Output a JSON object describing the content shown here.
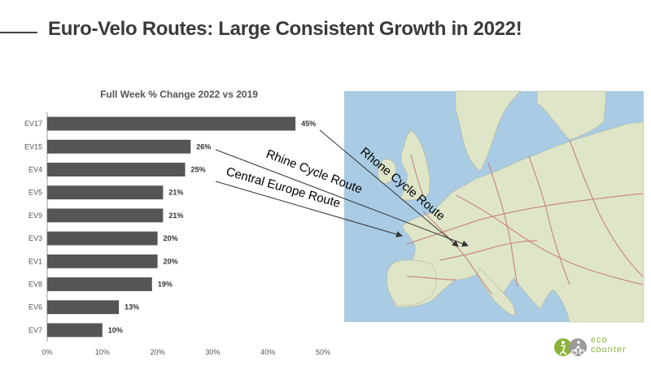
{
  "page": {
    "title": "Euro-Velo Routes: Large Consistent Growth in 2022!"
  },
  "chart_data": {
    "type": "bar",
    "orientation": "horizontal",
    "title": "Full Week % Change 2022 vs 2019",
    "categories": [
      "EV17",
      "EV15",
      "EV4",
      "EV5",
      "EV9",
      "EV3",
      "EV1",
      "EV8",
      "EV6",
      "EV7"
    ],
    "values": [
      45,
      26,
      25,
      21,
      21,
      20,
      20,
      19,
      13,
      10
    ],
    "value_labels": [
      "45%",
      "26%",
      "25%",
      "21%",
      "21%",
      "20%",
      "20%",
      "19%",
      "13%",
      "10%"
    ],
    "xlim": [
      0,
      50
    ],
    "ticks": [
      0,
      10,
      20,
      30,
      40,
      50
    ],
    "tick_labels": [
      "0%",
      "10%",
      "20%",
      "30%",
      "40%",
      "50%"
    ],
    "bar_color": "#555555",
    "grid": false
  },
  "annotations": {
    "rhine": "Rhine Cycle Route",
    "rhone": "Rhone Cycle Route",
    "central": "Central Europe Route"
  },
  "map": {
    "type": "Europe road map",
    "sea_color": "#a9cbe3",
    "land_color": "#dfe6c8"
  },
  "logo": {
    "line1": "eco",
    "line2": "counter",
    "color": "#8bb33b"
  }
}
